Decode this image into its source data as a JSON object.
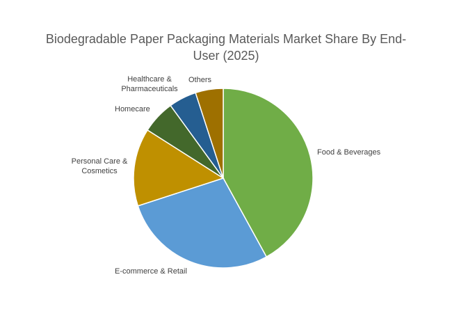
{
  "chart_data": {
    "type": "pie",
    "title": "Biodegradable Paper Packaging Materials Market Share By End-User (2025)",
    "slices": [
      {
        "label": "Food & Beverages",
        "value": 42,
        "color": "#70AD47"
      },
      {
        "label": "E-commerce & Retail",
        "value": 28,
        "color": "#5B9BD5"
      },
      {
        "label": "Personal Care & Cosmetics",
        "value": 14,
        "color": "#BF9000"
      },
      {
        "label": "Homecare",
        "value": 6,
        "color": "#43682B"
      },
      {
        "label": "Healthcare & Pharmaceuticals",
        "value": 5,
        "color": "#255E91"
      },
      {
        "label": "Others",
        "value": 5,
        "color": "#9E7000"
      }
    ],
    "start_angle": "top, clockwise",
    "legend": "none (data labels outside)"
  }
}
